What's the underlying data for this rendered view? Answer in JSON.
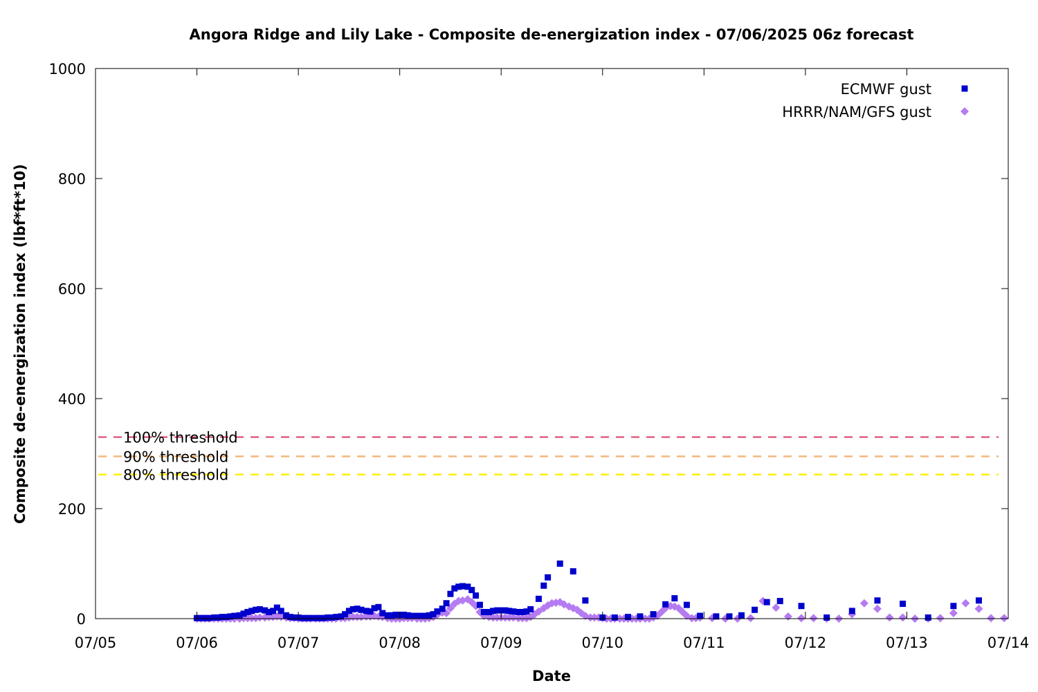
{
  "chart_data": {
    "type": "scatter",
    "title": "Angora Ridge and Lily Lake - Composite de-energization index - 07/06/2025 06z forecast",
    "xlabel": "Date",
    "ylabel": "Composite de-energization index (lbf*ft*10)",
    "xlim": [
      -1,
      8
    ],
    "x_ticks": [
      "07/05",
      "07/06",
      "07/07",
      "07/08",
      "07/09",
      "07/10",
      "07/11",
      "07/12",
      "07/13",
      "07/14"
    ],
    "x_note": "x values are days after 07/06 00z",
    "ylim": [
      0,
      1000
    ],
    "y_ticks": [
      "0",
      "200",
      "400",
      "600",
      "800",
      "1000"
    ],
    "grid": false,
    "legend_position": "top-right",
    "thresholds": [
      {
        "label": "100% threshold",
        "value": 330,
        "color": "#e0607e"
      },
      {
        "label": "90% threshold",
        "value": 295,
        "color": "#f4b77b"
      },
      {
        "label": "80% threshold",
        "value": 262,
        "color": "#ffee00"
      }
    ],
    "series": [
      {
        "name": "ECMWF gust",
        "marker": "square",
        "color": "#0000cc",
        "points": [
          [
            0.0,
            1
          ],
          [
            0.04,
            1
          ],
          [
            0.08,
            1
          ],
          [
            0.12,
            1
          ],
          [
            0.17,
            2
          ],
          [
            0.21,
            2
          ],
          [
            0.25,
            3
          ],
          [
            0.29,
            3
          ],
          [
            0.33,
            4
          ],
          [
            0.37,
            5
          ],
          [
            0.42,
            6
          ],
          [
            0.46,
            9
          ],
          [
            0.5,
            12
          ],
          [
            0.54,
            14
          ],
          [
            0.58,
            16
          ],
          [
            0.62,
            17
          ],
          [
            0.67,
            15
          ],
          [
            0.71,
            12
          ],
          [
            0.75,
            14
          ],
          [
            0.79,
            20
          ],
          [
            0.83,
            14
          ],
          [
            0.88,
            6
          ],
          [
            0.92,
            3
          ],
          [
            0.96,
            2
          ],
          [
            1.0,
            2
          ],
          [
            1.04,
            1
          ],
          [
            1.08,
            1
          ],
          [
            1.12,
            1
          ],
          [
            1.17,
            1
          ],
          [
            1.21,
            1
          ],
          [
            1.25,
            1
          ],
          [
            1.29,
            2
          ],
          [
            1.33,
            2
          ],
          [
            1.37,
            3
          ],
          [
            1.42,
            4
          ],
          [
            1.46,
            8
          ],
          [
            1.5,
            14
          ],
          [
            1.54,
            17
          ],
          [
            1.58,
            18
          ],
          [
            1.62,
            16
          ],
          [
            1.67,
            14
          ],
          [
            1.71,
            13
          ],
          [
            1.75,
            19
          ],
          [
            1.79,
            21
          ],
          [
            1.83,
            10
          ],
          [
            1.88,
            6
          ],
          [
            1.92,
            6
          ],
          [
            1.96,
            7
          ],
          [
            2.0,
            7
          ],
          [
            2.04,
            7
          ],
          [
            2.08,
            6
          ],
          [
            2.12,
            5
          ],
          [
            2.17,
            5
          ],
          [
            2.21,
            5
          ],
          [
            2.25,
            5
          ],
          [
            2.29,
            6
          ],
          [
            2.33,
            8
          ],
          [
            2.37,
            13
          ],
          [
            2.42,
            18
          ],
          [
            2.46,
            28
          ],
          [
            2.5,
            45
          ],
          [
            2.54,
            55
          ],
          [
            2.58,
            58
          ],
          [
            2.62,
            59
          ],
          [
            2.67,
            58
          ],
          [
            2.71,
            52
          ],
          [
            2.75,
            42
          ],
          [
            2.79,
            25
          ],
          [
            2.83,
            12
          ],
          [
            2.88,
            12
          ],
          [
            2.92,
            14
          ],
          [
            2.96,
            15
          ],
          [
            3.0,
            15
          ],
          [
            3.04,
            15
          ],
          [
            3.08,
            14
          ],
          [
            3.12,
            13
          ],
          [
            3.17,
            12
          ],
          [
            3.21,
            12
          ],
          [
            3.25,
            13
          ],
          [
            3.29,
            17
          ],
          [
            3.37,
            36
          ],
          [
            3.42,
            60
          ],
          [
            3.46,
            75
          ],
          [
            3.58,
            100
          ],
          [
            3.71,
            86
          ],
          [
            3.83,
            33
          ],
          [
            4.0,
            2
          ],
          [
            4.12,
            2
          ],
          [
            4.25,
            3
          ],
          [
            4.37,
            4
          ],
          [
            4.5,
            8
          ],
          [
            4.62,
            26
          ],
          [
            4.71,
            37
          ],
          [
            4.83,
            25
          ],
          [
            4.96,
            5
          ],
          [
            5.12,
            4
          ],
          [
            5.25,
            4
          ],
          [
            5.37,
            6
          ],
          [
            5.5,
            16
          ],
          [
            5.62,
            30
          ],
          [
            5.75,
            32
          ],
          [
            5.96,
            23
          ],
          [
            6.21,
            2
          ],
          [
            6.46,
            14
          ],
          [
            6.71,
            33
          ],
          [
            6.96,
            27
          ],
          [
            7.21,
            2
          ],
          [
            7.46,
            23
          ],
          [
            7.71,
            33
          ]
        ]
      },
      {
        "name": "HRRR/NAM/GFS gust",
        "marker": "diamond",
        "color": "#b57bf2",
        "points": [
          [
            0.0,
            0
          ],
          [
            0.04,
            0
          ],
          [
            0.08,
            0
          ],
          [
            0.12,
            0
          ],
          [
            0.17,
            0
          ],
          [
            0.21,
            0
          ],
          [
            0.25,
            0
          ],
          [
            0.29,
            0
          ],
          [
            0.33,
            0
          ],
          [
            0.37,
            0
          ],
          [
            0.42,
            0
          ],
          [
            0.46,
            1
          ],
          [
            0.5,
            1
          ],
          [
            0.54,
            1
          ],
          [
            0.58,
            1
          ],
          [
            0.62,
            2
          ],
          [
            0.67,
            2
          ],
          [
            0.71,
            3
          ],
          [
            0.75,
            3
          ],
          [
            0.79,
            4
          ],
          [
            0.83,
            3
          ],
          [
            0.88,
            2
          ],
          [
            0.92,
            1
          ],
          [
            0.96,
            1
          ],
          [
            1.0,
            0
          ],
          [
            1.04,
            0
          ],
          [
            1.08,
            0
          ],
          [
            1.12,
            0
          ],
          [
            1.17,
            0
          ],
          [
            1.21,
            0
          ],
          [
            1.25,
            0
          ],
          [
            1.29,
            0
          ],
          [
            1.33,
            0
          ],
          [
            1.37,
            0
          ],
          [
            1.42,
            1
          ],
          [
            1.46,
            1
          ],
          [
            1.5,
            2
          ],
          [
            1.54,
            3
          ],
          [
            1.58,
            3
          ],
          [
            1.62,
            3
          ],
          [
            1.67,
            4
          ],
          [
            1.71,
            4
          ],
          [
            1.75,
            5
          ],
          [
            1.79,
            4
          ],
          [
            1.83,
            3
          ],
          [
            1.88,
            1
          ],
          [
            1.92,
            0
          ],
          [
            1.96,
            0
          ],
          [
            2.0,
            0
          ],
          [
            2.04,
            1
          ],
          [
            2.08,
            1
          ],
          [
            2.12,
            1
          ],
          [
            2.17,
            0
          ],
          [
            2.21,
            0
          ],
          [
            2.25,
            0
          ],
          [
            2.29,
            1
          ],
          [
            2.33,
            3
          ],
          [
            2.37,
            7
          ],
          [
            2.42,
            11
          ],
          [
            2.46,
            10
          ],
          [
            2.5,
            19
          ],
          [
            2.54,
            27
          ],
          [
            2.58,
            32
          ],
          [
            2.62,
            33
          ],
          [
            2.67,
            35
          ],
          [
            2.71,
            30
          ],
          [
            2.75,
            23
          ],
          [
            2.79,
            12
          ],
          [
            2.83,
            5
          ],
          [
            2.88,
            3
          ],
          [
            2.92,
            2
          ],
          [
            2.96,
            2
          ],
          [
            3.0,
            2
          ],
          [
            3.04,
            2
          ],
          [
            3.08,
            2
          ],
          [
            3.12,
            2
          ],
          [
            3.17,
            1
          ],
          [
            3.21,
            1
          ],
          [
            3.25,
            1
          ],
          [
            3.29,
            3
          ],
          [
            3.33,
            8
          ],
          [
            3.37,
            13
          ],
          [
            3.42,
            19
          ],
          [
            3.46,
            24
          ],
          [
            3.5,
            28
          ],
          [
            3.54,
            29
          ],
          [
            3.58,
            30
          ],
          [
            3.62,
            26
          ],
          [
            3.67,
            22
          ],
          [
            3.71,
            19
          ],
          [
            3.75,
            16
          ],
          [
            3.79,
            10
          ],
          [
            3.83,
            5
          ],
          [
            3.88,
            2
          ],
          [
            3.92,
            2
          ],
          [
            3.96,
            2
          ],
          [
            4.0,
            1
          ],
          [
            4.04,
            0
          ],
          [
            4.08,
            0
          ],
          [
            4.12,
            0
          ],
          [
            4.17,
            0
          ],
          [
            4.21,
            0
          ],
          [
            4.25,
            0
          ],
          [
            4.29,
            0
          ],
          [
            4.33,
            0
          ],
          [
            4.37,
            0
          ],
          [
            4.42,
            0
          ],
          [
            4.46,
            0
          ],
          [
            4.5,
            2
          ],
          [
            4.54,
            5
          ],
          [
            4.58,
            12
          ],
          [
            4.62,
            19
          ],
          [
            4.67,
            23
          ],
          [
            4.71,
            22
          ],
          [
            4.75,
            19
          ],
          [
            4.79,
            12
          ],
          [
            4.83,
            5
          ],
          [
            4.88,
            1
          ],
          [
            4.92,
            1
          ],
          [
            4.96,
            2
          ],
          [
            5.08,
            1
          ],
          [
            5.21,
            0
          ],
          [
            5.33,
            0
          ],
          [
            5.46,
            1
          ],
          [
            5.58,
            32
          ],
          [
            5.71,
            20
          ],
          [
            5.83,
            4
          ],
          [
            5.96,
            1
          ],
          [
            6.08,
            1
          ],
          [
            6.21,
            0
          ],
          [
            6.33,
            0
          ],
          [
            6.46,
            8
          ],
          [
            6.58,
            28
          ],
          [
            6.71,
            18
          ],
          [
            6.83,
            2
          ],
          [
            6.96,
            2
          ],
          [
            7.08,
            0
          ],
          [
            7.21,
            0
          ],
          [
            7.33,
            1
          ],
          [
            7.46,
            10
          ],
          [
            7.58,
            28
          ],
          [
            7.71,
            18
          ],
          [
            7.83,
            1
          ],
          [
            7.96,
            1
          ]
        ]
      }
    ]
  }
}
